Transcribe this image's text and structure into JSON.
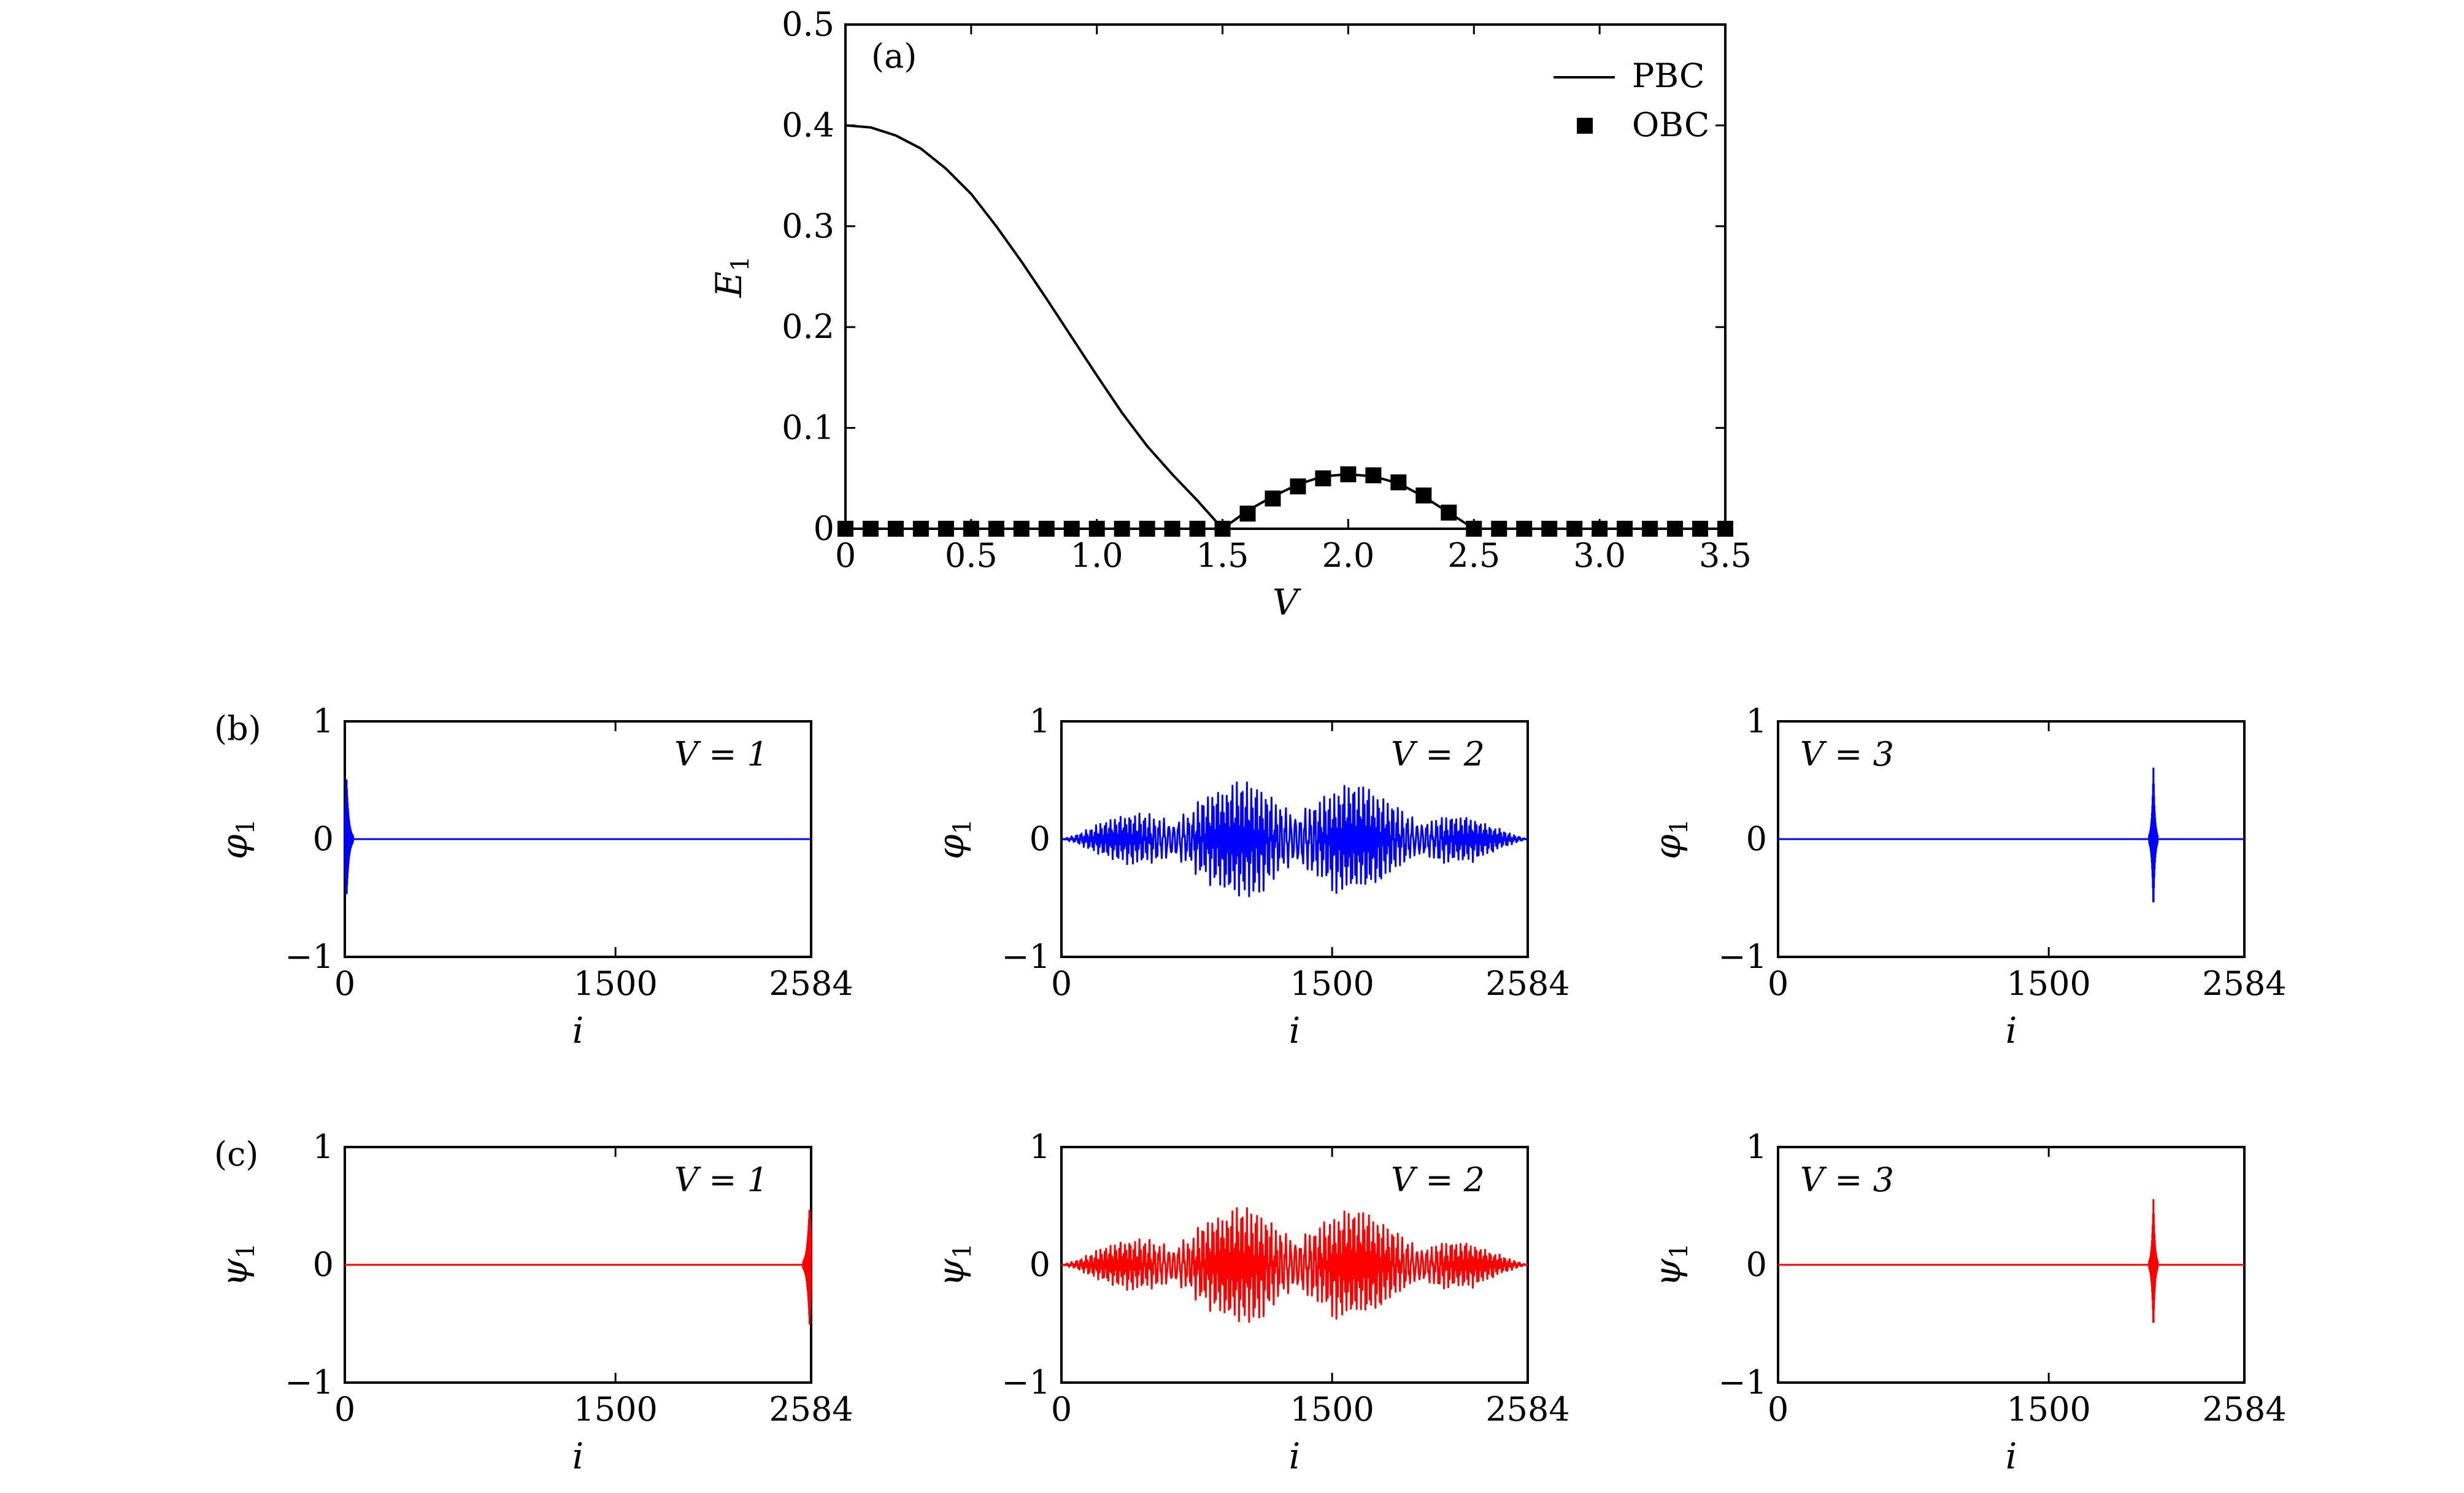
{
  "chart_data": [
    {
      "id": "a",
      "type": "line",
      "panel_label": "(a)",
      "xlabel": "V",
      "ylabel": "E",
      "ylabel_sub": "1",
      "xlim": [
        0,
        3.5
      ],
      "ylim": [
        0,
        0.5
      ],
      "x_ticks": [
        0,
        0.5,
        1.0,
        1.5,
        2.0,
        2.5,
        3.0,
        3.5
      ],
      "x_tick_labels": [
        "0",
        "0.5",
        "1.0",
        "1.5",
        "2.0",
        "2.5",
        "3.0",
        "3.5"
      ],
      "y_ticks": [
        0,
        0.1,
        0.2,
        0.3,
        0.4,
        0.5
      ],
      "y_tick_labels": [
        "0",
        "0.1",
        "0.2",
        "0.3",
        "0.4",
        "0.5"
      ],
      "legend_position": "top-right",
      "series": [
        {
          "name": "PBC",
          "style": "line",
          "color": "#000000",
          "x": [
            0,
            0.1,
            0.2,
            0.3,
            0.4,
            0.5,
            0.6,
            0.7,
            0.8,
            0.9,
            1.0,
            1.1,
            1.2,
            1.3,
            1.4,
            1.5,
            1.6,
            1.7,
            1.8,
            1.9,
            2.0,
            2.1,
            2.2,
            2.3,
            2.4,
            2.5,
            2.6,
            2.8,
            3.0,
            3.2,
            3.5
          ],
          "y": [
            0.4,
            0.398,
            0.39,
            0.377,
            0.357,
            0.332,
            0.3,
            0.265,
            0.228,
            0.19,
            0.152,
            0.115,
            0.082,
            0.054,
            0.028,
            0.0,
            0.018,
            0.032,
            0.044,
            0.052,
            0.054,
            0.052,
            0.045,
            0.032,
            0.016,
            0.0,
            0.0,
            0.0,
            0.0,
            0.0,
            0.0
          ]
        },
        {
          "name": "OBC",
          "style": "square-markers",
          "color": "#000000",
          "x": [
            0,
            0.1,
            0.2,
            0.3,
            0.4,
            0.5,
            0.6,
            0.7,
            0.8,
            0.9,
            1.0,
            1.1,
            1.2,
            1.3,
            1.4,
            1.5,
            1.6,
            1.7,
            1.8,
            1.9,
            2.0,
            2.1,
            2.2,
            2.3,
            2.4,
            2.5,
            2.6,
            2.7,
            2.8,
            2.9,
            3.0,
            3.1,
            3.2,
            3.3,
            3.4,
            3.5
          ],
          "y": [
            0,
            0,
            0,
            0,
            0,
            0,
            0,
            0,
            0,
            0,
            0,
            0,
            0,
            0,
            0,
            0,
            0.015,
            0.03,
            0.042,
            0.05,
            0.054,
            0.053,
            0.046,
            0.033,
            0.016,
            0,
            0,
            0,
            0,
            0,
            0,
            0,
            0,
            0,
            0,
            0
          ]
        }
      ]
    },
    {
      "id": "b1",
      "type": "line",
      "panel_label": "(b)",
      "annotation": "V = 1",
      "ylabel": "φ",
      "ylabel_sub": "1",
      "xlabel": "i",
      "xlim": [
        0,
        2584
      ],
      "ylim": [
        -1,
        1
      ],
      "x_ticks": [
        0,
        1500,
        2584
      ],
      "x_tick_labels": [
        "0",
        "1500",
        "2584"
      ],
      "y_ticks": [
        -1,
        0,
        1
      ],
      "y_tick_labels": [
        "−1",
        "0",
        "1"
      ],
      "series": [
        {
          "color": "#0000ff",
          "profile": "localized",
          "center": 10,
          "peak_amplitude": 0.5,
          "decay_sites": 12
        }
      ]
    },
    {
      "id": "b2",
      "type": "line",
      "panel_label": "",
      "annotation": "V = 2",
      "ylabel": "φ",
      "ylabel_sub": "1",
      "xlabel": "i",
      "xlim": [
        0,
        2584
      ],
      "ylim": [
        -1,
        1
      ],
      "x_ticks": [
        0,
        1500,
        2584
      ],
      "x_tick_labels": [
        "0",
        "1500",
        "2584"
      ],
      "y_ticks": [
        -1,
        0,
        1
      ],
      "y_tick_labels": [
        "−1",
        "0",
        "1"
      ],
      "series": [
        {
          "color": "#0000ff",
          "profile": "extended",
          "peak_amplitude": 0.55
        }
      ]
    },
    {
      "id": "b3",
      "type": "line",
      "panel_label": "",
      "annotation": "V = 3",
      "ylabel": "φ",
      "ylabel_sub": "1",
      "xlabel": "i",
      "xlim": [
        0,
        2584
      ],
      "ylim": [
        -1,
        1
      ],
      "x_ticks": [
        0,
        1500,
        2584
      ],
      "x_tick_labels": [
        "0",
        "1500",
        "2584"
      ],
      "y_ticks": [
        -1,
        0,
        1
      ],
      "y_tick_labels": [
        "−1",
        "0",
        "1"
      ],
      "series": [
        {
          "color": "#0000ff",
          "profile": "localized",
          "center": 2080,
          "peak_amplitude": 0.6,
          "decay_sites": 8
        }
      ]
    },
    {
      "id": "c1",
      "type": "line",
      "panel_label": "(c)",
      "annotation": "V = 1",
      "ylabel": "ψ",
      "ylabel_sub": "1",
      "xlabel": "i",
      "xlim": [
        0,
        2584
      ],
      "ylim": [
        -1,
        1
      ],
      "x_ticks": [
        0,
        1500,
        2584
      ],
      "x_tick_labels": [
        "0",
        "1500",
        "2584"
      ],
      "y_ticks": [
        -1,
        0,
        1
      ],
      "y_tick_labels": [
        "−1",
        "0",
        "1"
      ],
      "series": [
        {
          "color": "#ff0000",
          "profile": "localized",
          "center": 2575,
          "peak_amplitude": 0.5,
          "decay_sites": 12
        }
      ]
    },
    {
      "id": "c2",
      "type": "line",
      "panel_label": "",
      "annotation": "V = 2",
      "ylabel": "ψ",
      "ylabel_sub": "1",
      "xlabel": "i",
      "xlim": [
        0,
        2584
      ],
      "ylim": [
        -1,
        1
      ],
      "x_ticks": [
        0,
        1500,
        2584
      ],
      "x_tick_labels": [
        "0",
        "1500",
        "2584"
      ],
      "y_ticks": [
        -1,
        0,
        1
      ],
      "y_tick_labels": [
        "−1",
        "0",
        "1"
      ],
      "series": [
        {
          "color": "#ff0000",
          "profile": "extended",
          "peak_amplitude": 0.55
        }
      ]
    },
    {
      "id": "c3",
      "type": "line",
      "panel_label": "",
      "annotation": "V = 3",
      "ylabel": "ψ",
      "ylabel_sub": "1",
      "xlabel": "i",
      "xlim": [
        0,
        2584
      ],
      "ylim": [
        -1,
        1
      ],
      "x_ticks": [
        0,
        1500,
        2584
      ],
      "x_tick_labels": [
        "0",
        "1500",
        "2584"
      ],
      "y_ticks": [
        -1,
        0,
        1
      ],
      "y_tick_labels": [
        "−1",
        "0",
        "1"
      ],
      "series": [
        {
          "color": "#ff0000",
          "profile": "localized",
          "center": 2080,
          "peak_amplitude": 0.55,
          "decay_sites": 8
        }
      ]
    }
  ]
}
